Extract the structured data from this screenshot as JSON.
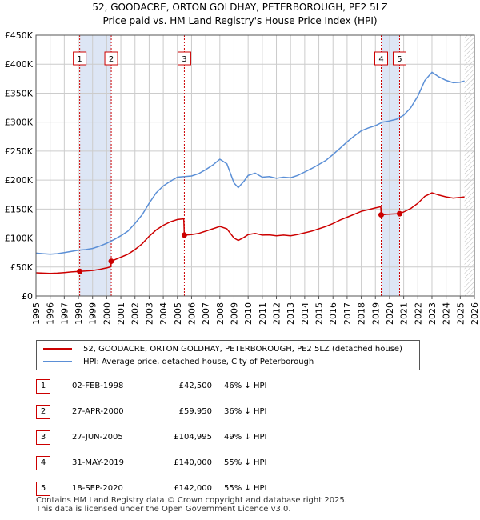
{
  "title_line1": "52, GOODACRE, ORTON GOLDHAY, PETERBOROUGH, PE2 5LZ",
  "title_line2": "Price paid vs. HM Land Registry's House Price Index (HPI)",
  "legend": {
    "property": "52, GOODACRE, ORTON GOLDHAY, PETERBOROUGH, PE2 5LZ (detached house)",
    "hpi": "HPI: Average price, detached house, City of Peterborough"
  },
  "colors": {
    "property": "#cc0000",
    "hpi": "#5b8fd6",
    "band": "#dde6f5",
    "grid": "#cccccc"
  },
  "sales": [
    {
      "num": "1",
      "date": "02-FEB-1998",
      "price": "£42,500",
      "hpi_diff": "46% ↓ HPI"
    },
    {
      "num": "2",
      "date": "27-APR-2000",
      "price": "£59,950",
      "hpi_diff": "36% ↓ HPI"
    },
    {
      "num": "3",
      "date": "27-JUN-2005",
      "price": "£104,995",
      "hpi_diff": "49% ↓ HPI"
    },
    {
      "num": "4",
      "date": "31-MAY-2019",
      "price": "£140,000",
      "hpi_diff": "55% ↓ HPI"
    },
    {
      "num": "5",
      "date": "18-SEP-2020",
      "price": "£142,000",
      "hpi_diff": "55% ↓ HPI"
    }
  ],
  "footer": {
    "line1": "Contains HM Land Registry data © Crown copyright and database right 2025.",
    "line2": "This data is licensed under the Open Government Licence v3.0."
  },
  "chart_data": {
    "type": "line",
    "title": "Price paid vs. HM Land Registry's House Price Index (HPI)",
    "xlim": [
      1995,
      2026
    ],
    "ylim": [
      0,
      450000
    ],
    "x_ticks": [
      "1995",
      "1996",
      "1997",
      "1998",
      "1999",
      "2000",
      "2001",
      "2002",
      "2003",
      "2004",
      "2005",
      "2006",
      "2007",
      "2008",
      "2009",
      "2010",
      "2011",
      "2012",
      "2013",
      "2014",
      "2015",
      "2016",
      "2017",
      "2018",
      "2019",
      "2020",
      "2021",
      "2022",
      "2023",
      "2024",
      "2025",
      "2026"
    ],
    "y_ticks": [
      {
        "value": 0,
        "label": "£0"
      },
      {
        "value": 50000,
        "label": "£50K"
      },
      {
        "value": 100000,
        "label": "£100K"
      },
      {
        "value": 150000,
        "label": "£150K"
      },
      {
        "value": 200000,
        "label": "£200K"
      },
      {
        "value": 250000,
        "label": "£250K"
      },
      {
        "value": 300000,
        "label": "£300K"
      },
      {
        "value": 350000,
        "label": "£350K"
      },
      {
        "value": 400000,
        "label": "£400K"
      },
      {
        "value": 450000,
        "label": "£450K"
      }
    ],
    "series": [
      {
        "name": "HPI: Average price, detached house, City of Peterborough",
        "points": [
          [
            1995.0,
            74000
          ],
          [
            1995.5,
            73000
          ],
          [
            1996.0,
            72000
          ],
          [
            1996.5,
            73000
          ],
          [
            1997.0,
            75000
          ],
          [
            1997.5,
            77000
          ],
          [
            1998.0,
            79000
          ],
          [
            1998.5,
            80000
          ],
          [
            1999.0,
            82000
          ],
          [
            1999.5,
            86000
          ],
          [
            2000.0,
            91000
          ],
          [
            2000.5,
            97000
          ],
          [
            2001.0,
            104000
          ],
          [
            2001.5,
            112000
          ],
          [
            2002.0,
            125000
          ],
          [
            2002.5,
            140000
          ],
          [
            2003.0,
            160000
          ],
          [
            2003.5,
            178000
          ],
          [
            2004.0,
            190000
          ],
          [
            2004.5,
            198000
          ],
          [
            2005.0,
            205000
          ],
          [
            2005.5,
            206000
          ],
          [
            2006.0,
            207000
          ],
          [
            2006.5,
            211000
          ],
          [
            2007.0,
            218000
          ],
          [
            2007.5,
            226000
          ],
          [
            2008.0,
            236000
          ],
          [
            2008.5,
            228000
          ],
          [
            2009.0,
            195000
          ],
          [
            2009.3,
            187000
          ],
          [
            2009.7,
            198000
          ],
          [
            2010.0,
            208000
          ],
          [
            2010.5,
            212000
          ],
          [
            2011.0,
            205000
          ],
          [
            2011.5,
            206000
          ],
          [
            2012.0,
            203000
          ],
          [
            2012.5,
            205000
          ],
          [
            2013.0,
            204000
          ],
          [
            2013.5,
            208000
          ],
          [
            2014.0,
            214000
          ],
          [
            2014.5,
            220000
          ],
          [
            2015.0,
            227000
          ],
          [
            2015.5,
            234000
          ],
          [
            2016.0,
            244000
          ],
          [
            2016.5,
            255000
          ],
          [
            2017.0,
            266000
          ],
          [
            2017.5,
            276000
          ],
          [
            2018.0,
            285000
          ],
          [
            2018.5,
            290000
          ],
          [
            2019.0,
            294000
          ],
          [
            2019.5,
            300000
          ],
          [
            2020.0,
            302000
          ],
          [
            2020.5,
            305000
          ],
          [
            2021.0,
            312000
          ],
          [
            2021.5,
            325000
          ],
          [
            2022.0,
            345000
          ],
          [
            2022.5,
            372000
          ],
          [
            2023.0,
            386000
          ],
          [
            2023.5,
            378000
          ],
          [
            2024.0,
            372000
          ],
          [
            2024.5,
            368000
          ],
          [
            2025.0,
            369000
          ],
          [
            2025.3,
            371000
          ]
        ]
      },
      {
        "name": "52, GOODACRE, ORTON GOLDHAY, PETERBOROUGH, PE2 5LZ (detached house)",
        "points": [
          [
            1995.0,
            40000
          ],
          [
            1995.5,
            39500
          ],
          [
            1996.0,
            39000
          ],
          [
            1996.5,
            39500
          ],
          [
            1997.0,
            40500
          ],
          [
            1997.5,
            41500
          ],
          [
            1998.09,
            42500
          ],
          [
            1998.5,
            43000
          ],
          [
            1999.0,
            44000
          ],
          [
            1999.5,
            46000
          ],
          [
            2000.0,
            48500
          ],
          [
            2000.3,
            50500
          ],
          [
            2000.32,
            59950
          ],
          [
            2000.6,
            63000
          ],
          [
            2001.0,
            67000
          ],
          [
            2001.5,
            72000
          ],
          [
            2002.0,
            80000
          ],
          [
            2002.5,
            90000
          ],
          [
            2003.0,
            103000
          ],
          [
            2003.5,
            114000
          ],
          [
            2004.0,
            122000
          ],
          [
            2004.5,
            128000
          ],
          [
            2005.0,
            132000
          ],
          [
            2005.45,
            133000
          ],
          [
            2005.49,
            104995
          ],
          [
            2006.0,
            106000
          ],
          [
            2006.5,
            108000
          ],
          [
            2007.0,
            112000
          ],
          [
            2007.5,
            116000
          ],
          [
            2008.0,
            120000
          ],
          [
            2008.5,
            116000
          ],
          [
            2009.0,
            100000
          ],
          [
            2009.3,
            96000
          ],
          [
            2009.7,
            101000
          ],
          [
            2010.0,
            106000
          ],
          [
            2010.5,
            108000
          ],
          [
            2011.0,
            105000
          ],
          [
            2011.5,
            105500
          ],
          [
            2012.0,
            104000
          ],
          [
            2012.5,
            105000
          ],
          [
            2013.0,
            104000
          ],
          [
            2013.5,
            106000
          ],
          [
            2014.0,
            109000
          ],
          [
            2014.5,
            112000
          ],
          [
            2015.0,
            116000
          ],
          [
            2015.5,
            120000
          ],
          [
            2016.0,
            125000
          ],
          [
            2016.5,
            131000
          ],
          [
            2017.0,
            136000
          ],
          [
            2017.5,
            141000
          ],
          [
            2018.0,
            146000
          ],
          [
            2018.5,
            149000
          ],
          [
            2019.0,
            152000
          ],
          [
            2019.38,
            154000
          ],
          [
            2019.41,
            140000
          ],
          [
            2019.8,
            141000
          ],
          [
            2020.2,
            141500
          ],
          [
            2020.71,
            142000
          ],
          [
            2021.0,
            145000
          ],
          [
            2021.5,
            151000
          ],
          [
            2022.0,
            160000
          ],
          [
            2022.5,
            172000
          ],
          [
            2023.0,
            178000
          ],
          [
            2023.5,
            174000
          ],
          [
            2024.0,
            171000
          ],
          [
            2024.5,
            169000
          ],
          [
            2025.0,
            170000
          ],
          [
            2025.3,
            171000
          ]
        ]
      }
    ],
    "sale_points": [
      {
        "num": "1",
        "x": 1998.09,
        "y": 42500
      },
      {
        "num": "2",
        "x": 2000.32,
        "y": 59950
      },
      {
        "num": "3",
        "x": 2005.49,
        "y": 104995
      },
      {
        "num": "4",
        "x": 2019.41,
        "y": 140000
      },
      {
        "num": "5",
        "x": 2020.71,
        "y": 142000
      }
    ],
    "shaded_periods": [
      [
        1998.09,
        2000.32
      ],
      [
        2019.41,
        2020.71
      ]
    ],
    "future_hatch_from": 2025.3
  }
}
